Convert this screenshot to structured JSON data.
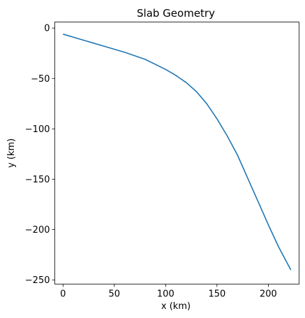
{
  "chart_data": {
    "type": "line",
    "title": "Slab Geometry",
    "xlabel": "x (km)",
    "ylabel": "y (km)",
    "xlim": [
      -8,
      230
    ],
    "ylim": [
      -254,
      6
    ],
    "xticks": [
      0,
      50,
      100,
      150,
      200
    ],
    "yticks": [
      0,
      -50,
      -100,
      -150,
      -200,
      -250
    ],
    "xtick_labels": [
      "0",
      "50",
      "100",
      "150",
      "200"
    ],
    "ytick_labels": [
      "0",
      "−50",
      "−100",
      "−150",
      "−200",
      "−250"
    ],
    "grid": false,
    "series": [
      {
        "color": "#1f77b4",
        "x": [
          0,
          20,
          40,
          60,
          80,
          100,
          110,
          120,
          130,
          140,
          150,
          160,
          170,
          180,
          190,
          200,
          210,
          222
        ],
        "y": [
          -6,
          -12,
          -18,
          -24,
          -31,
          -41,
          -47,
          -54,
          -63,
          -75,
          -90,
          -107,
          -126,
          -149,
          -172,
          -195,
          -217,
          -240
        ]
      }
    ]
  }
}
